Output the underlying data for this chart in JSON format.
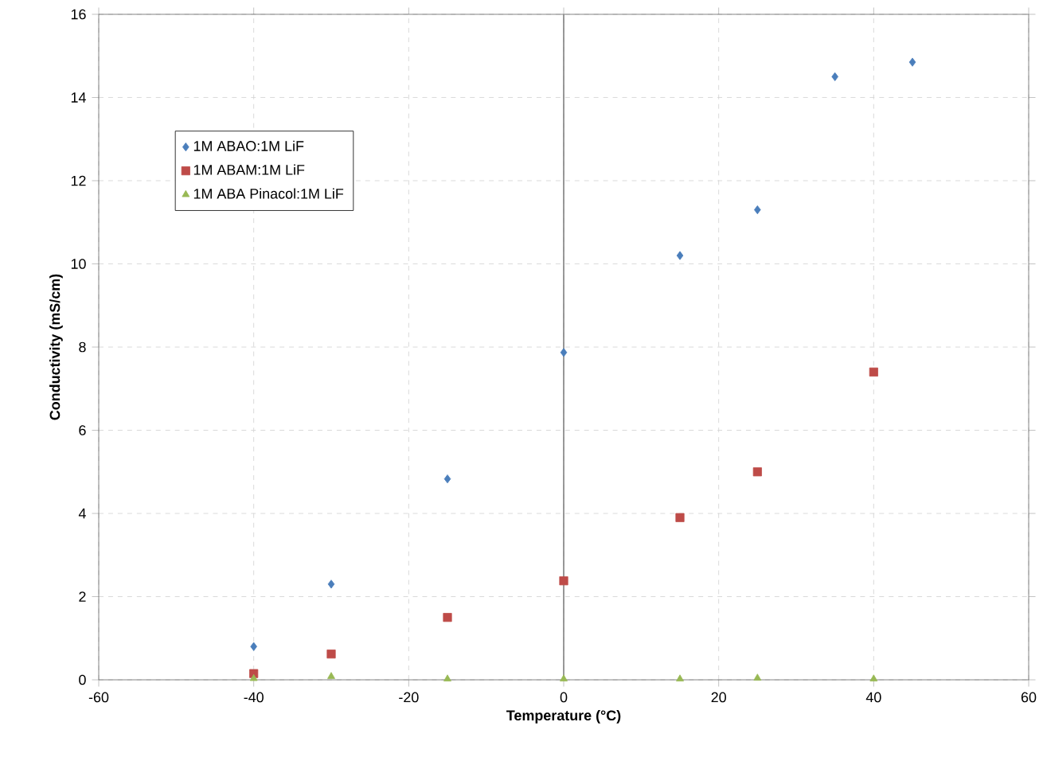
{
  "chart_data": {
    "type": "scatter",
    "xlabel": "Temperature (°C)",
    "ylabel": "Conductivity (mS/cm)",
    "xlim": [
      -60,
      60
    ],
    "ylim": [
      0,
      16
    ],
    "xticks": [
      -60,
      -40,
      -20,
      0,
      20,
      40,
      60
    ],
    "yticks": [
      0,
      2,
      4,
      6,
      8,
      10,
      12,
      14,
      16
    ],
    "grid": true,
    "legend": "top left",
    "ref_lines": [
      {
        "axis": "x",
        "value": 0,
        "color": "#808080"
      }
    ],
    "series": [
      {
        "name": "1M ABAO:1M LiF",
        "color": "#4a7ebb",
        "marker": "diamond",
        "x": [
          -40,
          -30,
          -15,
          0,
          15,
          25,
          35,
          45
        ],
        "values": [
          0.8,
          2.3,
          4.83,
          7.87,
          10.2,
          11.3,
          14.5,
          14.85
        ]
      },
      {
        "name": "1M ABAM:1M LiF",
        "color": "#be4b48",
        "marker": "square",
        "x": [
          -40,
          -30,
          -15,
          0,
          15,
          25,
          40
        ],
        "values": [
          0.15,
          0.62,
          1.5,
          2.38,
          3.9,
          5.0,
          7.4
        ]
      },
      {
        "name": "1M ABA Pinacol:1M LiF",
        "color": "#98b954",
        "marker": "triangle",
        "x": [
          -40,
          -30,
          -15,
          0,
          15,
          25,
          40
        ],
        "values": [
          0.03,
          0.08,
          0.02,
          0.02,
          0.02,
          0.04,
          0.02
        ]
      }
    ]
  }
}
